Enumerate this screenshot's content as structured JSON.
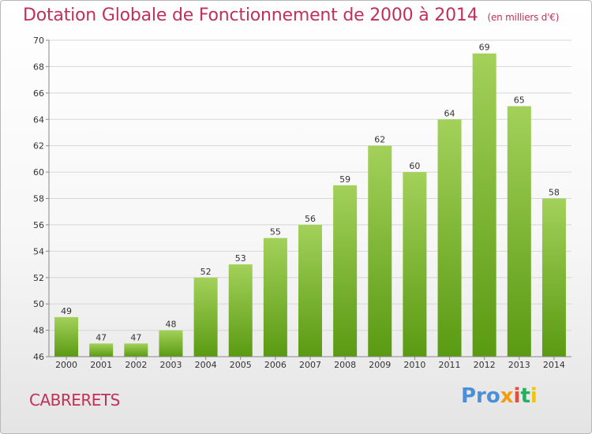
{
  "chart_data": {
    "type": "bar",
    "title": "Dotation Globale de Fonctionnement de 2000 à 2014",
    "subtitle": "(en milliers d'€)",
    "categories": [
      "2000",
      "2001",
      "2002",
      "2003",
      "2004",
      "2005",
      "2006",
      "2007",
      "2008",
      "2009",
      "2010",
      "2011",
      "2012",
      "2013",
      "2014"
    ],
    "values": [
      49,
      47,
      47,
      48,
      52,
      53,
      55,
      56,
      59,
      62,
      60,
      64,
      69,
      65,
      58
    ],
    "ylim": [
      46,
      70
    ],
    "yticks": [
      46,
      48,
      50,
      52,
      54,
      56,
      58,
      60,
      62,
      64,
      66,
      68,
      70
    ],
    "xlabel": "",
    "ylabel": "",
    "grid": true,
    "bar_color_top": "#a3d15a",
    "bar_color_bottom": "#5a9a12"
  },
  "footer": {
    "commune": "CABRERETS",
    "logo": [
      "Pro",
      "x",
      "i",
      "t",
      "i"
    ]
  }
}
